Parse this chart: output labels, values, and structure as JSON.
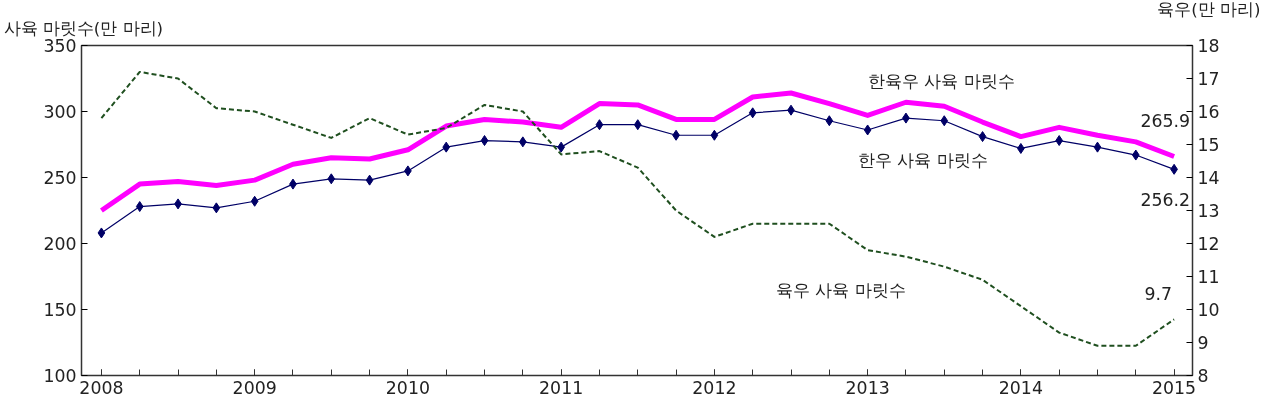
{
  "chart_data": {
    "type": "line",
    "ylabel": "사육 마릿수(만 마리)",
    "y2label": "육우(만 마리)",
    "x": [
      2008,
      2008.25,
      2008.5,
      2008.75,
      2009,
      2009.25,
      2009.5,
      2009.75,
      2010,
      2010.25,
      2010.5,
      2010.75,
      2011,
      2011.25,
      2011.5,
      2011.75,
      2012,
      2012.25,
      2012.5,
      2012.75,
      2013,
      2013.25,
      2013.5,
      2013.75,
      2014,
      2014.25,
      2014.5,
      2014.75,
      2015
    ],
    "xlim": [
      2007.87,
      2015.12
    ],
    "xticks": [
      2008,
      2009,
      2010,
      2011,
      2012,
      2013,
      2014,
      2015
    ],
    "ylim": [
      100,
      350
    ],
    "yticks": [
      100,
      150,
      200,
      250,
      300,
      350
    ],
    "y2lim": [
      8,
      18
    ],
    "y2ticks": [
      8,
      9,
      10,
      11,
      12,
      13,
      14,
      15,
      16,
      17,
      18
    ],
    "grid": false,
    "legend": false,
    "series": [
      {
        "name": "한육우 사육 마릿수",
        "color": "#ff00ff",
        "marker": "none",
        "line_style": "solid",
        "values": [
          225,
          245,
          247,
          244,
          248,
          260,
          265,
          264,
          271,
          289,
          294,
          292,
          288,
          306,
          305,
          294,
          294,
          311,
          314,
          306,
          297,
          307,
          304,
          292,
          281,
          288,
          282,
          277,
          265.9
        ],
        "value_labels": [
          null,
          null,
          null,
          null,
          null,
          null,
          null,
          null,
          null,
          null,
          null,
          null,
          null,
          null,
          null,
          null,
          null,
          null,
          null,
          null,
          null,
          null,
          null,
          null,
          null,
          null,
          null,
          null,
          "265.9"
        ]
      },
      {
        "name": "한우 사육 마릿수",
        "color": "#000066",
        "marker": "diamond",
        "line_style": "solid",
        "values": [
          208,
          228,
          230,
          227,
          232,
          245,
          249,
          248,
          255,
          273,
          278,
          277,
          273,
          290,
          290,
          282,
          282,
          299,
          301,
          293,
          286,
          295,
          293,
          281,
          272,
          278,
          273,
          267,
          256.2
        ],
        "value_labels": [
          null,
          null,
          null,
          null,
          null,
          null,
          null,
          null,
          null,
          null,
          null,
          null,
          null,
          null,
          null,
          null,
          null,
          null,
          null,
          null,
          null,
          null,
          null,
          null,
          null,
          null,
          null,
          null,
          "256.2"
        ]
      },
      {
        "name": "육우 사육 마릿수",
        "color": "#1f4f1f",
        "marker": "none",
        "line_style": "dashed",
        "axis": "y2",
        "values": [
          15.8,
          17.2,
          17.0,
          16.1,
          16.0,
          15.6,
          15.2,
          15.8,
          15.3,
          15.5,
          16.2,
          16.0,
          14.7,
          14.8,
          14.3,
          13.0,
          12.2,
          12.6,
          12.6,
          12.6,
          11.8,
          11.6,
          11.3,
          10.9,
          10.1,
          9.3,
          8.9,
          8.9,
          9.7
        ],
        "value_labels": [
          null,
          null,
          null,
          null,
          null,
          null,
          null,
          null,
          null,
          null,
          null,
          null,
          null,
          null,
          null,
          null,
          null,
          null,
          null,
          null,
          null,
          null,
          null,
          null,
          null,
          null,
          null,
          null,
          "9.7"
        ]
      }
    ]
  }
}
